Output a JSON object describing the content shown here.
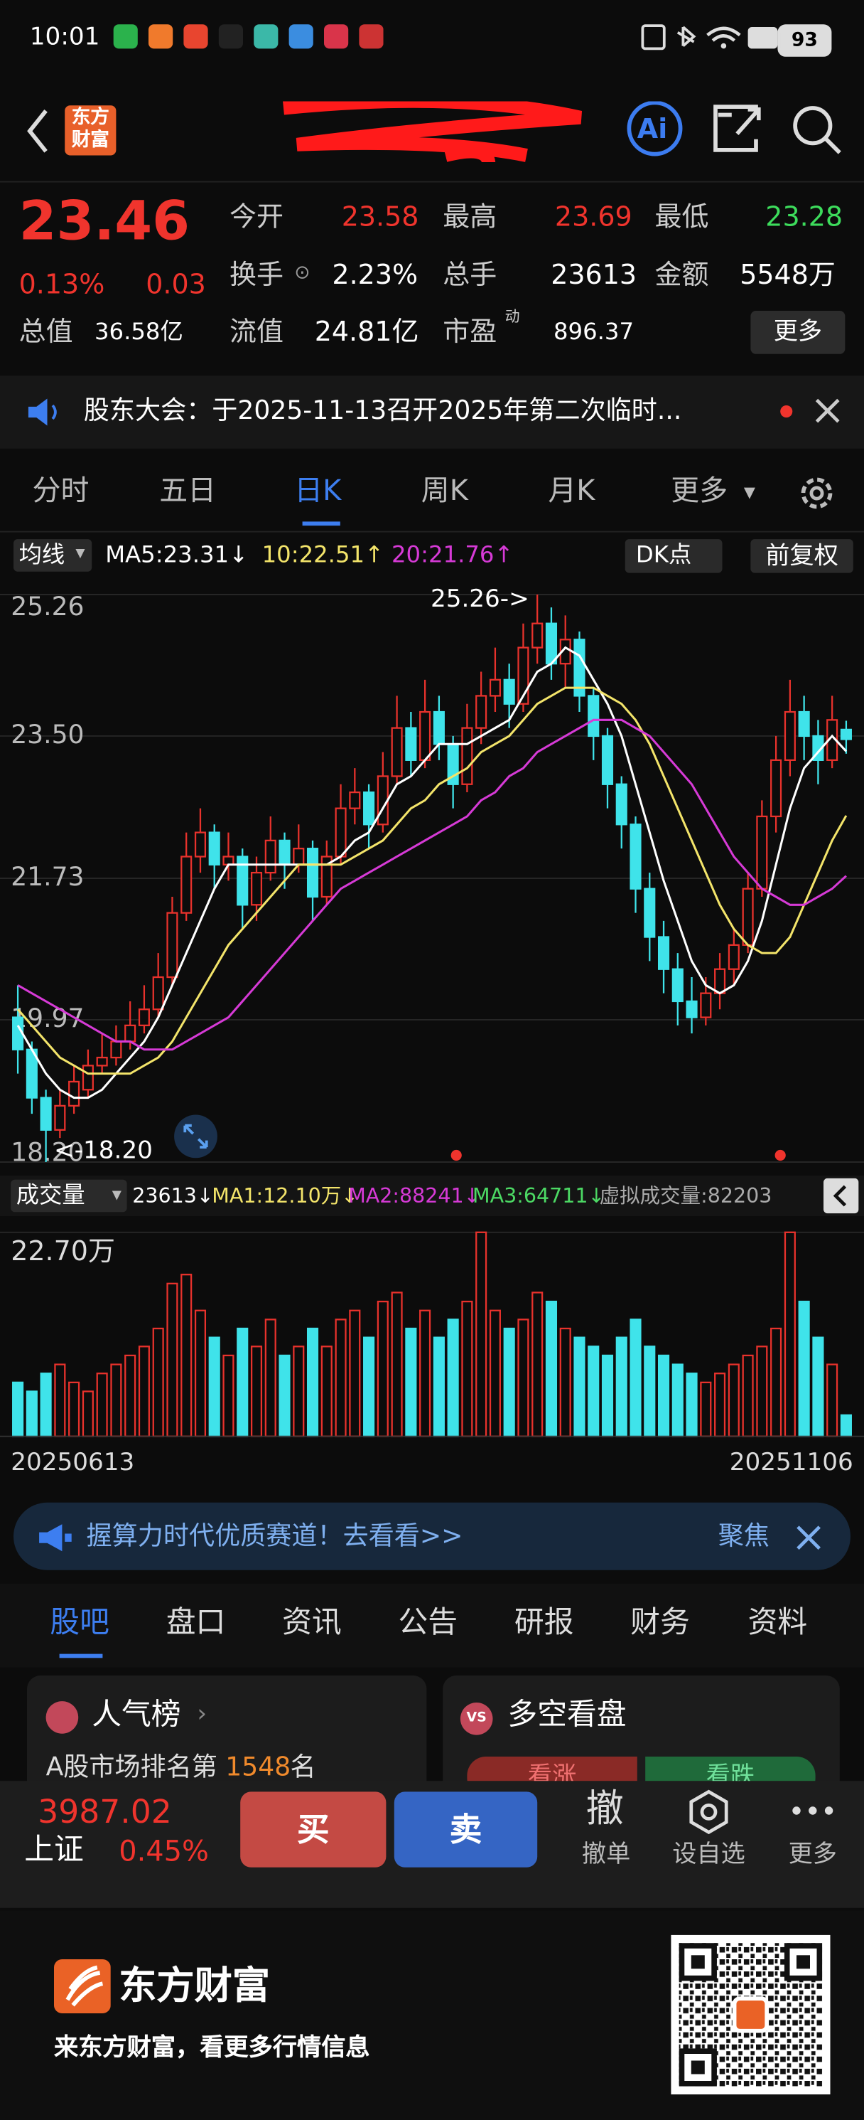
{
  "status_bar": {
    "time": "10:01",
    "battery": "93"
  },
  "header": {
    "logo": "东方财富",
    "ai": "Ai"
  },
  "quote": {
    "price": "23.46",
    "change_pct": "0.13%",
    "change": "0.03",
    "fields": [
      {
        "label": "今开",
        "value": "23.58"
      },
      {
        "label": "最高",
        "value": "23.69"
      },
      {
        "label": "最低",
        "value": "23.28"
      },
      {
        "label": "换手",
        "value": "2.23%"
      },
      {
        "label": "总手",
        "value": "23613"
      },
      {
        "label": "金额",
        "value": "5548万"
      },
      {
        "label": "总值",
        "value": "36.58亿"
      },
      {
        "label": "流值",
        "value": "24.81亿"
      },
      {
        "label": "市盈",
        "sup": "动",
        "value": "896.37"
      }
    ],
    "more": "更多"
  },
  "notice": {
    "text": "股东大会：于2025-11-13召开2025年第二次临时..."
  },
  "period_tabs": [
    "分时",
    "五日",
    "日K",
    "周K",
    "月K",
    "更多"
  ],
  "indicator_bar": {
    "ma_label": "均线",
    "ma5": "MA5:23.31↓",
    "ma10": "10:22.51↑",
    "ma20": "20:21.76↑",
    "dk": "DK点",
    "adjust": "前复权"
  },
  "kline": {
    "ylim": [
      18.2,
      25.26
    ],
    "yticks": [
      25.26,
      {
        "value": 23.5,
        "label": "23.50"
      },
      21.73,
      19.97,
      {
        "value": 18.2,
        "label": "18.20"
      }
    ],
    "peak_label": "25.26->",
    "low_label": "<-18.20",
    "up_color": "#e8322c",
    "down_color": "#3fe3ea",
    "open": [
      20.0,
      19.6,
      19.0,
      18.6,
      18.9,
      19.1,
      19.4,
      19.5,
      19.7,
      19.9,
      20.1,
      20.5,
      21.3,
      22.0,
      22.3,
      21.9,
      22.0,
      21.4,
      21.8,
      22.2,
      21.9,
      22.1,
      21.5,
      22.0,
      22.6,
      22.8,
      22.4,
      23.0,
      23.6,
      23.2,
      23.8,
      23.4,
      22.9,
      23.6,
      24.0,
      24.2,
      23.9,
      24.6,
      24.9,
      24.4,
      24.7,
      24.0,
      23.5,
      22.9,
      22.4,
      21.6,
      21.0,
      20.6,
      20.2,
      20.0,
      20.3,
      20.6,
      20.9,
      21.6,
      22.5,
      23.2,
      23.8,
      23.5,
      23.2,
      23.58
    ],
    "close": [
      19.6,
      19.0,
      18.6,
      18.9,
      19.2,
      19.4,
      19.5,
      19.7,
      19.9,
      20.1,
      20.5,
      21.3,
      22.0,
      22.3,
      21.9,
      22.0,
      21.4,
      21.8,
      22.2,
      21.9,
      22.1,
      21.5,
      22.0,
      22.6,
      22.8,
      22.4,
      23.0,
      23.6,
      23.2,
      23.8,
      23.4,
      22.9,
      23.6,
      24.0,
      24.2,
      23.9,
      24.6,
      24.9,
      24.4,
      24.7,
      24.0,
      23.5,
      22.9,
      22.4,
      21.6,
      21.0,
      20.6,
      20.2,
      20.0,
      20.3,
      20.6,
      20.9,
      21.6,
      22.5,
      23.2,
      23.8,
      23.5,
      23.2,
      23.7,
      23.46
    ],
    "high": [
      20.4,
      19.7,
      19.1,
      19.1,
      19.4,
      19.6,
      19.8,
      19.9,
      20.2,
      20.4,
      20.8,
      21.5,
      22.3,
      22.6,
      22.4,
      22.3,
      22.1,
      22.0,
      22.5,
      22.3,
      22.4,
      22.2,
      22.2,
      22.9,
      23.1,
      22.9,
      23.3,
      24.0,
      23.8,
      24.2,
      24.0,
      23.5,
      23.9,
      24.3,
      24.6,
      24.4,
      24.9,
      25.26,
      25.1,
      25.0,
      24.8,
      24.1,
      23.6,
      23.0,
      22.5,
      21.8,
      21.2,
      20.8,
      20.5,
      20.5,
      20.8,
      21.1,
      21.8,
      22.7,
      23.5,
      24.2,
      24.0,
      23.7,
      24.0,
      23.69
    ],
    "low": [
      19.3,
      18.8,
      18.2,
      18.5,
      18.8,
      19.0,
      19.3,
      19.4,
      19.6,
      19.8,
      20.0,
      20.4,
      21.2,
      21.8,
      21.6,
      21.7,
      21.1,
      21.2,
      21.7,
      21.6,
      21.8,
      21.2,
      21.4,
      21.9,
      22.4,
      22.1,
      22.3,
      22.9,
      23.0,
      23.1,
      23.2,
      22.6,
      22.8,
      23.4,
      23.8,
      23.6,
      23.8,
      24.4,
      24.2,
      24.1,
      23.8,
      23.2,
      22.6,
      22.1,
      21.3,
      20.7,
      20.3,
      19.9,
      19.8,
      19.9,
      20.1,
      20.4,
      20.8,
      21.5,
      22.3,
      23.0,
      23.2,
      22.9,
      23.1,
      23.28
    ],
    "ma_lines": [
      {
        "name": "MA5",
        "color": "#ffffff",
        "values": [
          19.9,
          19.6,
          19.3,
          19.1,
          19.0,
          19.0,
          19.1,
          19.3,
          19.5,
          19.7,
          20.0,
          20.4,
          20.8,
          21.2,
          21.6,
          21.9,
          21.9,
          21.9,
          21.9,
          21.9,
          21.9,
          21.9,
          21.9,
          22.0,
          22.2,
          22.3,
          22.6,
          22.9,
          23.0,
          23.2,
          23.4,
          23.4,
          23.4,
          23.5,
          23.6,
          23.7,
          24.0,
          24.3,
          24.4,
          24.6,
          24.5,
          24.2,
          23.9,
          23.5,
          22.9,
          22.3,
          21.7,
          21.2,
          20.7,
          20.4,
          20.3,
          20.4,
          20.7,
          21.2,
          21.9,
          22.6,
          23.1,
          23.3,
          23.5,
          23.31
        ]
      },
      {
        "name": "MA10",
        "color": "#f3e46a",
        "values": [
          20.1,
          19.9,
          19.7,
          19.5,
          19.4,
          19.3,
          19.3,
          19.3,
          19.3,
          19.4,
          19.5,
          19.7,
          20.0,
          20.3,
          20.6,
          20.9,
          21.1,
          21.3,
          21.5,
          21.7,
          21.9,
          21.9,
          21.9,
          21.9,
          22.0,
          22.1,
          22.2,
          22.4,
          22.6,
          22.7,
          22.9,
          23.0,
          23.1,
          23.3,
          23.4,
          23.5,
          23.7,
          23.9,
          24.0,
          24.1,
          24.1,
          24.1,
          24.0,
          23.9,
          23.7,
          23.4,
          23.0,
          22.6,
          22.2,
          21.8,
          21.4,
          21.1,
          20.9,
          20.8,
          20.8,
          21.0,
          21.4,
          21.8,
          22.2,
          22.51
        ]
      },
      {
        "name": "MA20",
        "color": "#d63ad6",
        "values": [
          20.4,
          20.3,
          20.2,
          20.1,
          20.0,
          19.9,
          19.8,
          19.7,
          19.7,
          19.6,
          19.6,
          19.6,
          19.7,
          19.8,
          19.9,
          20.0,
          20.2,
          20.4,
          20.6,
          20.8,
          21.0,
          21.2,
          21.4,
          21.6,
          21.7,
          21.8,
          21.9,
          22.0,
          22.1,
          22.2,
          22.3,
          22.4,
          22.5,
          22.7,
          22.8,
          23.0,
          23.1,
          23.3,
          23.4,
          23.5,
          23.6,
          23.7,
          23.7,
          23.7,
          23.6,
          23.5,
          23.3,
          23.1,
          22.9,
          22.6,
          22.3,
          22.0,
          21.8,
          21.6,
          21.5,
          21.4,
          21.4,
          21.5,
          21.6,
          21.76
        ]
      }
    ]
  },
  "volume_bar": {
    "label": "成交量",
    "current": "23613↓",
    "ma1": "MA1:12.10万↓",
    "ma2": "MA2:88241↓",
    "ma3": "MA3:64711↓",
    "virtual": "虚拟成交量:82203"
  },
  "volume": {
    "ylim": [
      0,
      22.7
    ],
    "yticks": [
      {
        "value": 22.7,
        "label": "22.70万"
      }
    ],
    "values": [
      6,
      5,
      7,
      8,
      6,
      5,
      7,
      8,
      9,
      10,
      12,
      17,
      18,
      14,
      11,
      9,
      12,
      10,
      13,
      9,
      10,
      12,
      10,
      13,
      14,
      11,
      15,
      16,
      12,
      14,
      11,
      13,
      15,
      22.7,
      14,
      12,
      13,
      16,
      15,
      12,
      11,
      10,
      9,
      11,
      13,
      10,
      9,
      8,
      7,
      6,
      7,
      8,
      9,
      10,
      12,
      22.7,
      15,
      11,
      8,
      2.36
    ],
    "start_date": "20250613",
    "end_date": "20251106"
  },
  "banner": {
    "text": "握算力时代优质赛道！去看看>>",
    "right": "聚焦"
  },
  "bottom_tabs": [
    "股吧",
    "盘口",
    "资讯",
    "公告",
    "研报",
    "财务",
    "资料"
  ],
  "cards": {
    "popularity": {
      "title": "人气榜",
      "text_prefix": "A股市场排名第",
      "rank": "1548",
      "suffix": "名"
    },
    "sentiment": {
      "title": "多空看盘",
      "bull": "看涨",
      "bear": "看跌"
    }
  },
  "index": {
    "value": "3987.02",
    "name": "上证",
    "change": "0.45%"
  },
  "actions": {
    "buy": "买",
    "sell": "卖",
    "cancel_icon": "撤",
    "cancel": "撤单",
    "watch": "设自选",
    "more": "更多"
  },
  "footer": {
    "brand": "东方财富",
    "slogan": "来东方财富，看更多行情信息"
  }
}
